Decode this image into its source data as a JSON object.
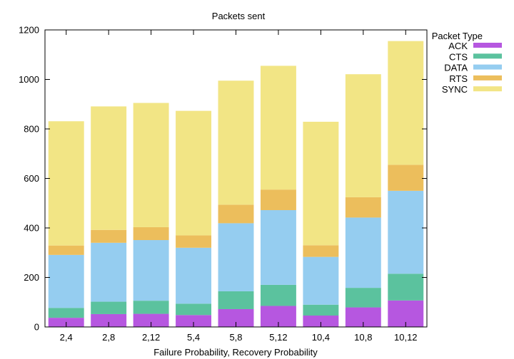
{
  "chart_data": {
    "type": "bar",
    "stacked": true,
    "title": "Packets sent",
    "xlabel": "Failure Probability, Recovery Probability",
    "ylabel": "",
    "ylim": [
      0,
      1200
    ],
    "yticks": [
      0,
      200,
      400,
      600,
      800,
      1000,
      1200
    ],
    "grid": false,
    "legend_title": "Packet Type",
    "legend_position": "right",
    "categories": [
      "2,4",
      "2,8",
      "2,12",
      "5,4",
      "5,8",
      "5,12",
      "10,4",
      "10,8",
      "10,12"
    ],
    "series": [
      {
        "name": "ACK",
        "color": "#b657e0",
        "values": [
          37,
          52,
          53,
          48,
          72,
          85,
          46,
          79,
          107
        ]
      },
      {
        "name": "CTS",
        "color": "#5bc29e",
        "values": [
          40,
          50,
          53,
          46,
          72,
          85,
          44,
          79,
          108
        ]
      },
      {
        "name": "DATA",
        "color": "#95cdf0",
        "values": [
          214,
          238,
          245,
          226,
          275,
          302,
          193,
          284,
          335
        ]
      },
      {
        "name": "RTS",
        "color": "#ecbe5c",
        "values": [
          38,
          52,
          52,
          50,
          75,
          83,
          47,
          82,
          105
        ]
      },
      {
        "name": "SYNC",
        "color": "#f2e585",
        "values": [
          502,
          499,
          502,
          503,
          501,
          500,
          499,
          497,
          500
        ]
      }
    ]
  }
}
